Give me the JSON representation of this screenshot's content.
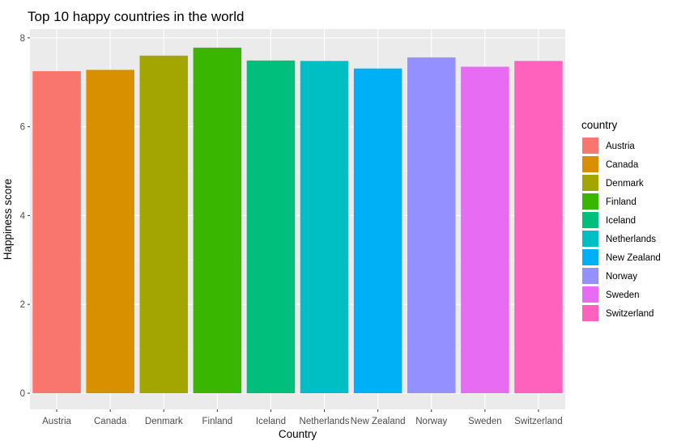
{
  "chart_data": {
    "type": "bar",
    "title": "Top 10 happy countries in the world",
    "xlabel": "Country",
    "ylabel": "Happiness score",
    "ylim": [
      0,
      8.2
    ],
    "yticks": [
      0,
      2,
      4,
      6,
      8
    ],
    "grid": true,
    "legend": {
      "title": "country",
      "position": "right"
    },
    "categories": [
      "Austria",
      "Canada",
      "Denmark",
      "Finland",
      "Iceland",
      "Netherlands",
      "New Zealand",
      "Norway",
      "Sweden",
      "Switzerland"
    ],
    "values": [
      7.25,
      7.28,
      7.6,
      7.78,
      7.49,
      7.48,
      7.31,
      7.56,
      7.35,
      7.48
    ],
    "colors": [
      "#F8766D",
      "#D89000",
      "#A3A500",
      "#39B600",
      "#00BF7D",
      "#00BFC4",
      "#00B0F6",
      "#9590FF",
      "#E76BF3",
      "#FF62BC"
    ]
  }
}
